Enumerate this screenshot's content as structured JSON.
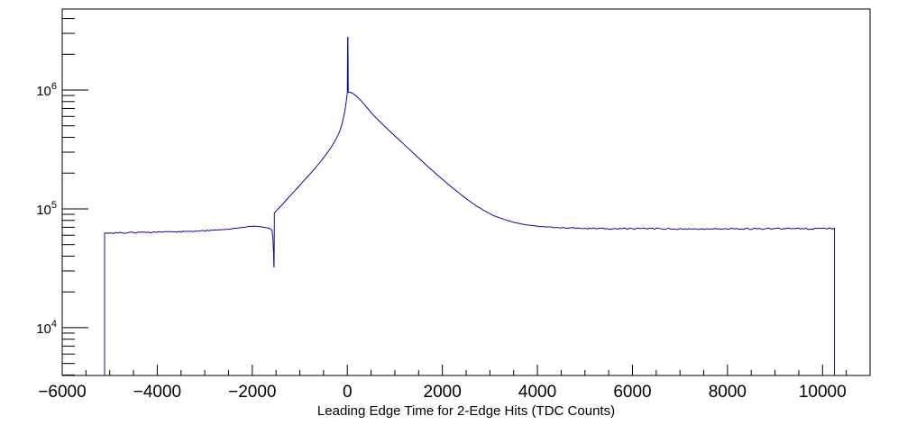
{
  "page": {
    "background": "#ffffff"
  },
  "chart_data": {
    "type": "line",
    "subtype": "histogram-step-log-y",
    "title": "",
    "xlabel": "Leading Edge Time for 2-Edge Hits (TDC Counts)",
    "ylabel": "",
    "grid": false,
    "legend": null,
    "colors": {
      "line": "#0808a8",
      "frame": "#000000",
      "background": "#ffffff"
    },
    "x_axis": {
      "min": -6000,
      "max": 11000,
      "major_tick_step": 2000,
      "minor_tick_step": 500,
      "tick_labels": [
        {
          "value": -6000,
          "label": "−6000"
        },
        {
          "value": -4000,
          "label": "−4000"
        },
        {
          "value": -2000,
          "label": "−2000"
        },
        {
          "value": 0,
          "label": "0"
        },
        {
          "value": 2000,
          "label": "2000"
        },
        {
          "value": 4000,
          "label": "4000"
        },
        {
          "value": 6000,
          "label": "6000"
        },
        {
          "value": 8000,
          "label": "8000"
        },
        {
          "value": 10000,
          "label": "10000"
        }
      ]
    },
    "y_axis": {
      "scale": "log",
      "min": 3960,
      "max": 4810000,
      "decade_labels": [
        {
          "value": 10000,
          "base": "10",
          "exp": "4"
        },
        {
          "value": 100000,
          "base": "10",
          "exp": "5"
        },
        {
          "value": 1000000,
          "base": "10",
          "exp": "6"
        }
      ],
      "minor_ticks_per_decade": [
        2,
        3,
        4,
        5,
        6,
        7,
        8,
        9
      ]
    },
    "features": {
      "data_start_x": -5108,
      "data_end_x": 10251,
      "left_plateau_level": 62500,
      "right_plateau_level": 68000,
      "notch_dip": {
        "x": -1541,
        "min_value": 32200
      },
      "peak": {
        "x": 0,
        "value": 950000
      },
      "spike": {
        "x": 0,
        "top_value": 2780000
      }
    },
    "series": [
      {
        "name": "leading-edge-time-2edge-hits",
        "points": [
          [
            -5108,
            3960
          ],
          [
            -5108,
            62500
          ],
          [
            -5000,
            62700
          ],
          [
            -4700,
            62900
          ],
          [
            -4400,
            63100
          ],
          [
            -4100,
            63400
          ],
          [
            -3800,
            63900
          ],
          [
            -3500,
            64300
          ],
          [
            -3200,
            64900
          ],
          [
            -2950,
            65600
          ],
          [
            -2700,
            66500
          ],
          [
            -2450,
            67900
          ],
          [
            -2250,
            69400
          ],
          [
            -2100,
            70700
          ],
          [
            -1980,
            71300
          ],
          [
            -1880,
            71100
          ],
          [
            -1780,
            70400
          ],
          [
            -1680,
            69200
          ],
          [
            -1620,
            68000
          ],
          [
            -1585,
            66000
          ],
          [
            -1566,
            56500
          ],
          [
            -1552,
            43000
          ],
          [
            -1545,
            33000
          ],
          [
            -1541,
            32200
          ],
          [
            -1538,
            55000
          ],
          [
            -1535,
            92000
          ],
          [
            -1500,
            96000
          ],
          [
            -1462,
            99500
          ],
          [
            -1420,
            103500
          ],
          [
            -1365,
            109000
          ],
          [
            -1300,
            117000
          ],
          [
            -1210,
            128000
          ],
          [
            -1120,
            140000
          ],
          [
            -1030,
            153000
          ],
          [
            -940,
            168000
          ],
          [
            -850,
            184000
          ],
          [
            -760,
            202000
          ],
          [
            -670,
            222000
          ],
          [
            -580,
            245000
          ],
          [
            -490,
            272000
          ],
          [
            -400,
            305000
          ],
          [
            -310,
            345000
          ],
          [
            -230,
            392000
          ],
          [
            -160,
            450000
          ],
          [
            -110,
            520000
          ],
          [
            -70,
            610000
          ],
          [
            -40,
            710000
          ],
          [
            -18,
            830000
          ],
          [
            -5,
            920000
          ],
          [
            0,
            950000
          ],
          [
            6,
            2780000
          ],
          [
            13,
            2780000
          ],
          [
            20,
            955000
          ],
          [
            60,
            958000
          ],
          [
            130,
            930000
          ],
          [
            230,
            860000
          ],
          [
            330,
            780000
          ],
          [
            430,
            700000
          ],
          [
            530,
            625000
          ],
          [
            700,
            535000
          ],
          [
            900,
            448000
          ],
          [
            1100,
            378000
          ],
          [
            1300,
            318000
          ],
          [
            1500,
            268000
          ],
          [
            1700,
            226000
          ],
          [
            1900,
            192000
          ],
          [
            2100,
            164000
          ],
          [
            2300,
            141000
          ],
          [
            2500,
            122000
          ],
          [
            2700,
            107000
          ],
          [
            2900,
            95500
          ],
          [
            3100,
            87000
          ],
          [
            3300,
            81500
          ],
          [
            3500,
            77000
          ],
          [
            3750,
            73500
          ],
          [
            4000,
            71500
          ],
          [
            4250,
            70200
          ],
          [
            4500,
            69400
          ],
          [
            4800,
            68800
          ],
          [
            5100,
            68400
          ],
          [
            5500,
            68100
          ],
          [
            6000,
            68000
          ],
          [
            6500,
            68000
          ],
          [
            7000,
            68000
          ],
          [
            7500,
            68000
          ],
          [
            8000,
            68000
          ],
          [
            8500,
            68000
          ],
          [
            9000,
            68000
          ],
          [
            9500,
            68000
          ],
          [
            10000,
            68000
          ],
          [
            10251,
            68000
          ],
          [
            10251,
            3960
          ]
        ]
      }
    ]
  }
}
